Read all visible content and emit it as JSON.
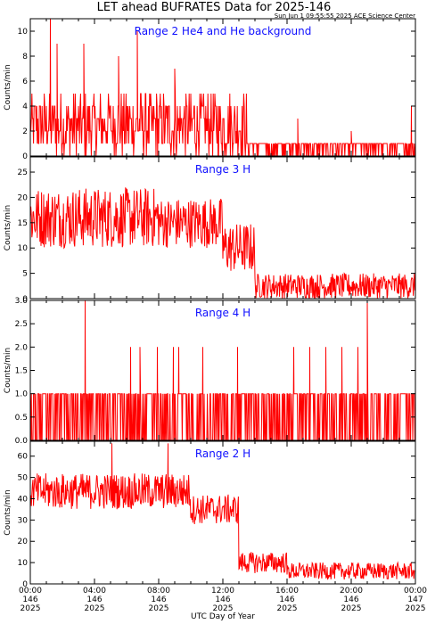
{
  "header": {
    "title": "LET ahead BUFRATES Data for 2025-146",
    "timestamp": "Sun Jun  1 09:55:55 2025 ACE Science Center"
  },
  "colors": {
    "trace": "#ff0000",
    "panel_label": "#1010ff",
    "axes": "#000000"
  },
  "chart_data": [
    {
      "type": "line",
      "label": "Range 2 He4 and He background",
      "ylabel": "Counts/min",
      "ylim": [
        0,
        11
      ],
      "yticks": [
        0,
        2,
        4,
        6,
        8,
        10
      ],
      "xlim": [
        0,
        1440
      ],
      "segments": [
        {
          "x_start": 0,
          "x_end": 810,
          "low": 0,
          "high": 5,
          "spikes": [
            [
              75,
              11
            ],
            [
              100,
              9
            ],
            [
              200,
              9
            ],
            [
              400,
              10
            ],
            [
              330,
              8
            ],
            [
              540,
              7
            ]
          ]
        },
        {
          "x_start": 810,
          "x_end": 1440,
          "low": 0,
          "high": 1.5,
          "spikes": [
            [
              1000,
              3
            ],
            [
              1200,
              2
            ],
            [
              1425,
              4
            ]
          ]
        }
      ]
    },
    {
      "type": "line",
      "label": "Range 3 H",
      "ylabel": "Counts/min",
      "ylim": [
        0,
        28
      ],
      "yticks": [
        0,
        5,
        10,
        15,
        20,
        25
      ],
      "xlim": [
        0,
        1440
      ],
      "segments": [
        {
          "x_start": 0,
          "x_end": 480,
          "low": 10,
          "high": 22
        },
        {
          "x_start": 480,
          "x_end": 720,
          "low": 10,
          "high": 20
        },
        {
          "x_start": 720,
          "x_end": 840,
          "low": 5,
          "high": 15
        },
        {
          "x_start": 840,
          "x_end": 1440,
          "low": 0,
          "high": 5
        }
      ]
    },
    {
      "type": "line",
      "label": "Range 4 H",
      "ylabel": "Counts/min",
      "ylim": [
        0,
        3
      ],
      "yticks": [
        0.0,
        0.5,
        1.0,
        1.5,
        2.0,
        2.5,
        3.0
      ],
      "xlim": [
        0,
        1440
      ],
      "segments": [
        {
          "x_start": 0,
          "x_end": 1440,
          "low": 0,
          "high": 1
        }
      ],
      "spikes": [
        [
          205,
          3
        ],
        [
          1260,
          3
        ],
        [
          375,
          2
        ],
        [
          410,
          2
        ],
        [
          475,
          2
        ],
        [
          535,
          2
        ],
        [
          555,
          2
        ],
        [
          645,
          2
        ],
        [
          775,
          2
        ],
        [
          985,
          2
        ],
        [
          1045,
          2
        ],
        [
          1105,
          2
        ],
        [
          1165,
          2
        ],
        [
          1225,
          2
        ]
      ]
    },
    {
      "type": "line",
      "label": "Range 2 H",
      "ylabel": "Counts/min",
      "ylim": [
        0,
        67
      ],
      "yticks": [
        0,
        10,
        20,
        30,
        40,
        50,
        60
      ],
      "xlim": [
        0,
        1440
      ],
      "segments": [
        {
          "x_start": 0,
          "x_end": 600,
          "low": 35,
          "high": 52,
          "spikes": [
            [
              305,
              66
            ],
            [
              515,
              66
            ]
          ]
        },
        {
          "x_start": 600,
          "x_end": 780,
          "low": 28,
          "high": 42
        },
        {
          "x_start": 780,
          "x_end": 960,
          "low": 5,
          "high": 15
        },
        {
          "x_start": 960,
          "x_end": 1440,
          "low": 2,
          "high": 10
        }
      ],
      "xticks": [
        {
          "time": "00:00",
          "day": "146",
          "year": "2025"
        },
        {
          "time": "04:00",
          "day": "146",
          "year": "2025"
        },
        {
          "time": "08:00",
          "day": "146",
          "year": "2025"
        },
        {
          "time": "12:00",
          "day": "146",
          "year": "2025"
        },
        {
          "time": "16:00",
          "day": "146",
          "year": "2025"
        },
        {
          "time": "20:00",
          "day": "146",
          "year": "2025"
        },
        {
          "time": "00:00",
          "day": "147",
          "year": "2025"
        }
      ]
    }
  ],
  "xlabel": "UTC Day of Year"
}
